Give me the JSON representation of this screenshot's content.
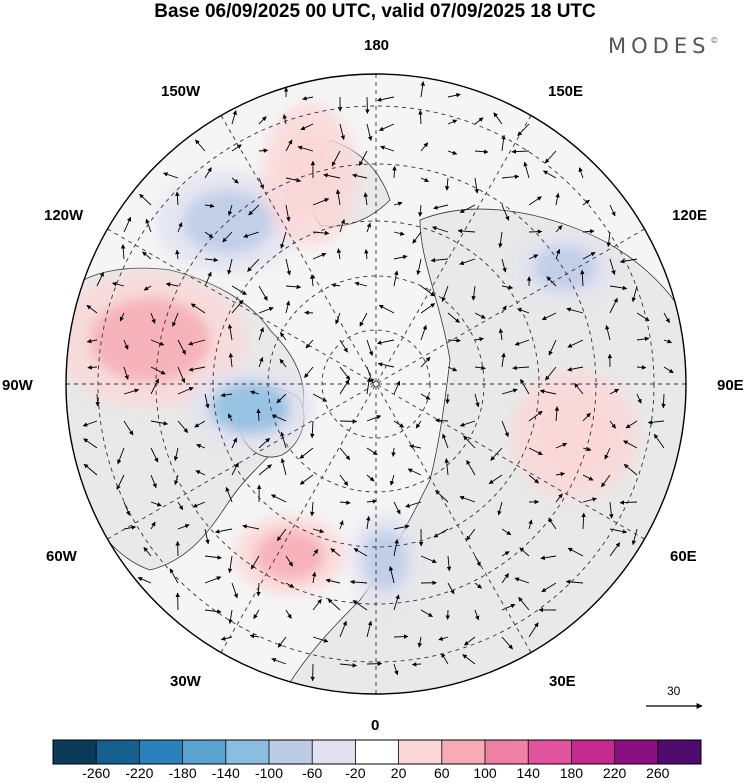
{
  "title": "Base 06/09/2025 00 UTC, valid 07/09/2025 18 UTC",
  "brand": "MODES",
  "brand_mark": "©",
  "longitude_labels": {
    "lon_180": "180",
    "lon_150e": "150E",
    "lon_120e": "120E",
    "lon_90e": "90E",
    "lon_60e": "60E",
    "lon_30e": "30E",
    "lon_0": "0",
    "lon_30w": "30W",
    "lon_60w": "60W",
    "lon_90w": "90W",
    "lon_120w": "120W",
    "lon_150w": "150W"
  },
  "reference_vector": {
    "label": "30"
  },
  "colorbar": {
    "colors": [
      "#0b3a5b",
      "#15608f",
      "#2a82bc",
      "#5aa3cf",
      "#8bbde0",
      "#bccbe6",
      "#e2e1f0",
      "#ffffff",
      "#fbd7d7",
      "#f6abb5",
      "#ef80a6",
      "#e2539d",
      "#c42a8f",
      "#8a0f81",
      "#4e0a6d"
    ],
    "ticks": [
      "-260",
      "-220",
      "-180",
      "-140",
      "-100",
      "-60",
      "-20",
      "20",
      "60",
      "100",
      "140",
      "180",
      "220",
      "260"
    ]
  },
  "anomaly_centers": [
    {
      "name": "gulf-of-alaska-low",
      "sign": "negative",
      "value": -80
    },
    {
      "name": "canada-high",
      "sign": "positive",
      "value": 80
    },
    {
      "name": "hudson-bay-low",
      "sign": "negative",
      "value": -100
    },
    {
      "name": "north-atlantic-high",
      "sign": "positive",
      "value": 80
    },
    {
      "name": "western-europe-low",
      "sign": "negative",
      "value": -80
    },
    {
      "name": "east-siberia-low",
      "sign": "negative",
      "value": -60
    },
    {
      "name": "central-siberia-high",
      "sign": "positive",
      "value": 60
    },
    {
      "name": "bering-sea-high",
      "sign": "positive",
      "value": 40
    }
  ]
}
